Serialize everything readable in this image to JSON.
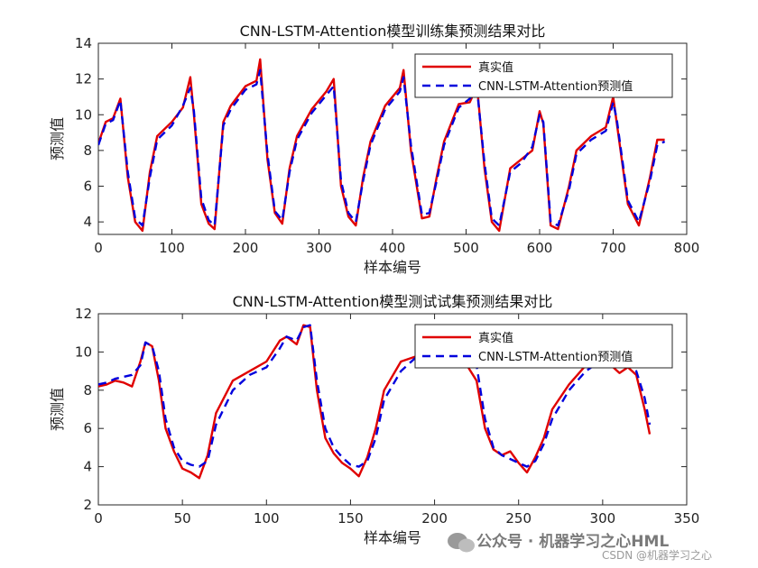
{
  "colors": {
    "true": "#e00000",
    "pred": "#0000dd",
    "axis": "#262626",
    "grid_bg": "#ffffff"
  },
  "watermark": {
    "main": "公众号 · 机器学习之心HML",
    "sub": "CSDN @机器学习之心",
    "icon": "wechat-icon"
  },
  "chart_data": [
    {
      "type": "line",
      "title": "CNN-LSTM-Attention模型训练集预测结果对比",
      "xlabel": "样本编号",
      "ylabel": "预测值",
      "xlim": [
        0,
        800
      ],
      "ylim": [
        3.3,
        14
      ],
      "xticks": [
        0,
        100,
        200,
        300,
        400,
        500,
        600,
        700,
        800
      ],
      "yticks": [
        4,
        6,
        8,
        10,
        12,
        14
      ],
      "legend": {
        "position": "top-right",
        "entries": [
          "真实值",
          "CNN-LSTM-Attention预测值"
        ]
      },
      "x": [
        0,
        10,
        20,
        30,
        40,
        50,
        60,
        70,
        80,
        100,
        115,
        125,
        130,
        140,
        150,
        158,
        170,
        180,
        200,
        215,
        220,
        230,
        240,
        250,
        260,
        270,
        290,
        310,
        320,
        330,
        340,
        350,
        360,
        370,
        390,
        410,
        415,
        425,
        440,
        450,
        460,
        470,
        490,
        505,
        515,
        525,
        535,
        545,
        560,
        575,
        590,
        600,
        605,
        615,
        625,
        640,
        650,
        670,
        690,
        700,
        705,
        720,
        735,
        750,
        760,
        770
      ],
      "series": [
        {
          "name": "真实值",
          "style": "solid",
          "values": [
            8.4,
            9.6,
            9.8,
            10.9,
            6.5,
            4.0,
            3.5,
            6.8,
            8.8,
            9.6,
            10.4,
            12.1,
            10.0,
            5.0,
            3.9,
            3.6,
            9.6,
            10.5,
            11.6,
            11.9,
            13.1,
            7.5,
            4.5,
            3.9,
            7.0,
            8.8,
            10.3,
            11.3,
            12.0,
            6.0,
            4.3,
            3.8,
            6.5,
            8.5,
            10.5,
            11.5,
            12.5,
            8.0,
            4.2,
            4.3,
            6.5,
            8.5,
            10.6,
            10.7,
            11.6,
            7.0,
            4.0,
            3.5,
            7.0,
            7.5,
            8.0,
            10.2,
            9.5,
            3.8,
            3.6,
            6.0,
            8.0,
            8.8,
            9.3,
            11.0,
            9.5,
            5.0,
            3.8,
            6.5,
            8.6,
            8.6
          ]
        },
        {
          "name": "CNN-LSTM-Attention预测值",
          "style": "dashed",
          "values": [
            8.3,
            9.5,
            9.7,
            10.8,
            6.8,
            4.2,
            3.8,
            6.5,
            8.6,
            9.4,
            10.5,
            11.5,
            10.2,
            5.3,
            4.1,
            3.8,
            9.4,
            10.3,
            11.4,
            11.7,
            12.5,
            7.8,
            4.6,
            4.1,
            6.8,
            8.6,
            10.1,
            11.1,
            11.6,
            6.3,
            4.5,
            4.0,
            6.3,
            8.3,
            10.3,
            11.3,
            12.1,
            8.3,
            4.4,
            4.5,
            6.3,
            8.3,
            10.4,
            10.9,
            11.4,
            7.3,
            4.2,
            3.8,
            6.8,
            7.3,
            8.2,
            10.0,
            9.6,
            4.0,
            3.8,
            5.8,
            7.8,
            8.6,
            9.1,
            10.7,
            9.7,
            5.2,
            4.0,
            6.3,
            8.3,
            8.5
          ]
        }
      ]
    },
    {
      "type": "line",
      "title": "CNN-LSTM-Attention模型测试试集预测结果对比",
      "xlabel": "样本编号",
      "ylabel": "预测值",
      "xlim": [
        0,
        350
      ],
      "ylim": [
        2,
        12
      ],
      "xticks": [
        0,
        50,
        100,
        150,
        200,
        250,
        300,
        350
      ],
      "yticks": [
        2,
        4,
        6,
        8,
        10,
        12
      ],
      "legend": {
        "position": "top-right",
        "entries": [
          "真实值",
          "CNN-LSTM-Attention预测值"
        ]
      },
      "x": [
        0,
        5,
        10,
        15,
        20,
        25,
        28,
        32,
        36,
        40,
        45,
        50,
        55,
        60,
        65,
        70,
        80,
        90,
        100,
        108,
        112,
        118,
        122,
        126,
        130,
        135,
        140,
        145,
        150,
        155,
        160,
        165,
        170,
        180,
        190,
        200,
        210,
        215,
        220,
        225,
        230,
        235,
        240,
        245,
        250,
        255,
        260,
        265,
        270,
        280,
        290,
        300,
        305,
        310,
        315,
        320,
        325,
        328
      ],
      "series": [
        {
          "name": "真实值",
          "style": "solid",
          "values": [
            8.2,
            8.3,
            8.5,
            8.4,
            8.2,
            9.5,
            10.5,
            10.3,
            8.5,
            6.0,
            4.8,
            3.9,
            3.7,
            3.4,
            4.6,
            6.8,
            8.5,
            9.0,
            9.5,
            10.6,
            10.8,
            10.4,
            11.4,
            11.3,
            8.0,
            5.5,
            4.7,
            4.2,
            3.9,
            3.5,
            4.5,
            6.0,
            8.0,
            9.5,
            9.8,
            9.6,
            9.8,
            9.5,
            9.2,
            8.5,
            6.0,
            4.9,
            4.6,
            4.8,
            4.2,
            3.7,
            4.5,
            5.5,
            7.0,
            8.3,
            9.3,
            9.5,
            9.3,
            8.9,
            9.2,
            8.8,
            7.0,
            5.7
          ]
        },
        {
          "name": "CNN-LSTM-Attention预测值",
          "style": "dashed",
          "values": [
            8.3,
            8.4,
            8.6,
            8.7,
            8.8,
            9.3,
            10.5,
            10.3,
            9.0,
            6.5,
            5.0,
            4.3,
            4.1,
            4.0,
            4.3,
            6.2,
            8.0,
            8.8,
            9.2,
            10.2,
            10.8,
            10.6,
            11.3,
            11.4,
            8.5,
            6.0,
            5.0,
            4.5,
            4.1,
            4.0,
            4.3,
            5.5,
            7.5,
            9.0,
            9.8,
            9.7,
            9.8,
            9.7,
            9.6,
            9.3,
            6.5,
            5.0,
            4.6,
            4.4,
            4.2,
            4.0,
            4.3,
            5.2,
            6.5,
            8.0,
            9.0,
            9.6,
            9.6,
            9.4,
            9.3,
            9.0,
            7.6,
            6.2
          ]
        }
      ]
    }
  ]
}
